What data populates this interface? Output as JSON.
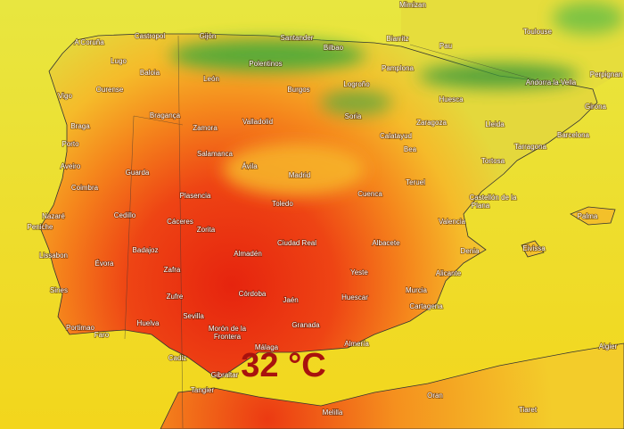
{
  "map": {
    "temperature": "32 °C",
    "labels": [
      "Mimizan",
      "Biarritz",
      "Pau",
      "Toulouse",
      "Perpignan",
      "Andorra la Vella",
      "Girona",
      "Barcelona",
      "Tarragona",
      "Lleida",
      "Tortosa",
      "Castellón de la",
      "Plana",
      "Valencia",
      "Palma",
      "Denia",
      "Eivissa",
      "Alicante",
      "Murcia",
      "Cartagena",
      "Almería",
      "Oran",
      "Melilla",
      "Tiaret",
      "Algier",
      "Huescar",
      "Yeste",
      "Albacete",
      "Cuenca",
      "Teruel",
      "Bea",
      "Calatayud",
      "Zaragoza",
      "Huesca",
      "Pamplona",
      "Logroño",
      "Soria",
      "Santander",
      "Bilbao",
      "Polentinos",
      "Burgos",
      "Madrid",
      "Toledo",
      "Ciudad Real",
      "Almadén",
      "Córdoba",
      "Jaén",
      "Granada",
      "Málaga",
      "Morón de la",
      "Frontera",
      "Sevilla",
      "Huelva",
      "Cadiz",
      "Gibraltar",
      "Tangier",
      "Faro",
      "Portimao",
      "Sines",
      "Lissabon",
      "Peniche",
      "Nazaré",
      "Coimbra",
      "Aveiro",
      "Porto",
      "Braga",
      "Vigo",
      "Ourense",
      "A Coruña",
      "Lugo",
      "Castropol",
      "Gijón",
      "Baloia",
      "León",
      "Bragança",
      "Zamora",
      "Valladolid",
      "Salamanca",
      "Ávila",
      "Guarda",
      "Plasencia",
      "Cedillo",
      "Cáceres",
      "Zorita",
      "Badajoz",
      "Évora",
      "Zafra",
      "Zufre"
    ]
  }
}
